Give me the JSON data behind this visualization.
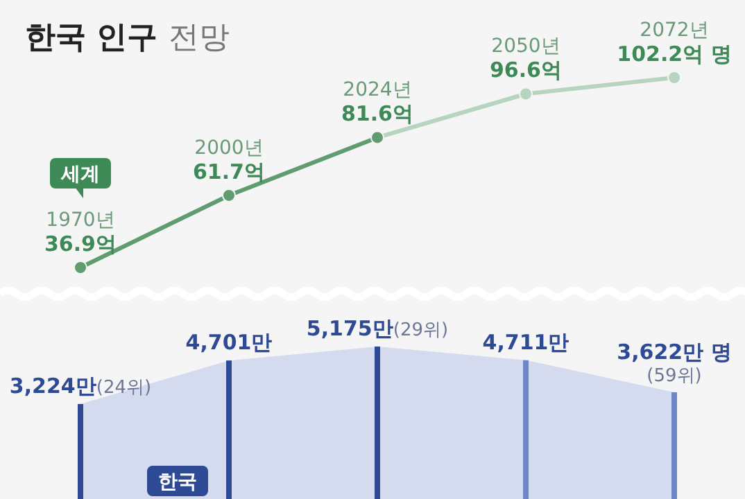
{
  "chart_data": [
    {
      "type": "line",
      "title": "한국 인구 전망",
      "categories": [
        null,
        null,
        null,
        null,
        null
      ],
      "tick_labels": false,
      "marker": "circle",
      "series": [
        {
          "values": [
            null,
            null,
            81.6,
            96.6,
            102.2
          ],
          "color": "#b7d4bf",
          "value_labels": [
            null,
            null,
            null,
            "2050년\n96.6억",
            "2072년\n102.2억 명"
          ]
        },
        {
          "values": [
            36.9,
            61.7,
            81.6,
            null,
            null
          ],
          "color": "#5f9c70",
          "value_labels": [
            "1970년\n36.9억",
            "2000년\n61.7억",
            "2024년\n81.6억",
            null,
            null
          ]
        }
      ],
      "annotations": [
        "세계"
      ]
    },
    {
      "type": "bar",
      "categories": [
        null,
        null,
        null,
        null,
        null
      ],
      "tick_labels": false,
      "series": [
        {
          "colors": [
            "#2e4a94",
            "#2e4a94",
            "#2e4a94",
            "#6f86c6",
            "#6f86c6"
          ],
          "values": [
            3224,
            4701,
            5175,
            4711,
            3622
          ],
          "value_labels": [
            "3,224만(24위)",
            "4,701만",
            "5,175만(29위)",
            "4,711만",
            "3,622만 명\n(59위)"
          ]
        }
      ],
      "annotations": [
        "한국"
      ]
    }
  ]
}
